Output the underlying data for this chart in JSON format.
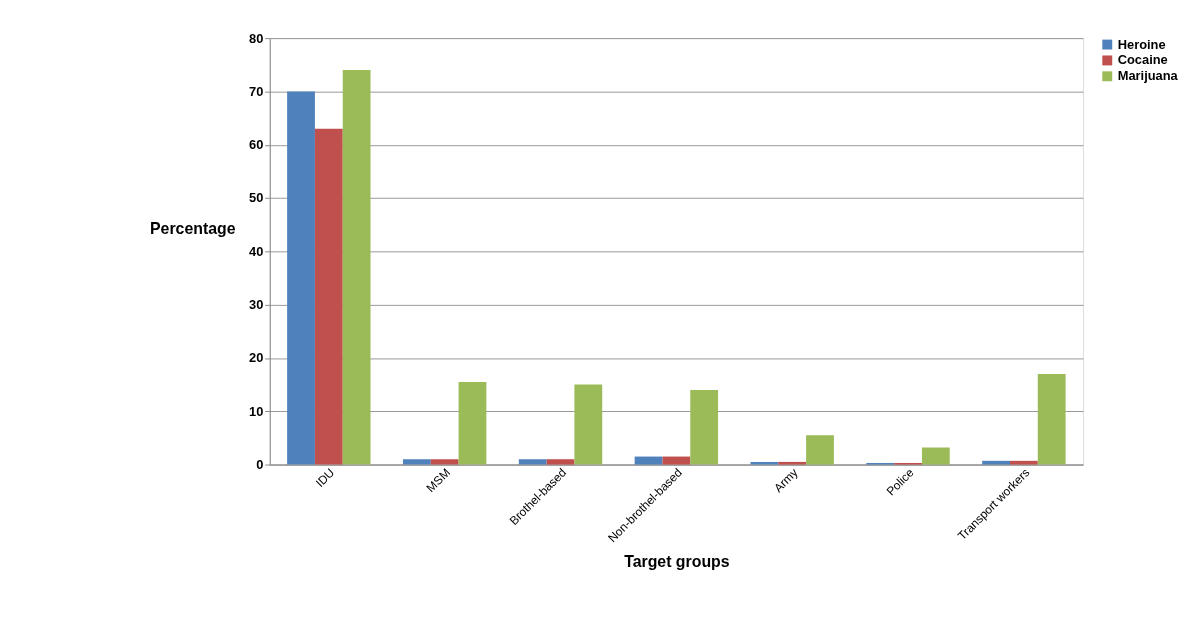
{
  "chart_data": {
    "type": "bar",
    "xlabel": "Target groups",
    "ylabel": "Percentage",
    "categories": [
      "IDU",
      "MSM",
      "Brothel-based",
      "Non-brothel-based",
      "Army",
      "Police",
      "Transport workers"
    ],
    "series": [
      {
        "name": "Heroine",
        "color": "#4f81bd",
        "values": [
          70,
          1,
          1,
          1.5,
          0.5,
          0.3,
          0.7
        ]
      },
      {
        "name": "Cocaine",
        "color": "#c0504d",
        "values": [
          63,
          1,
          1,
          1.5,
          0.5,
          0.3,
          0.7
        ]
      },
      {
        "name": "Marijuana",
        "color": "#9bbb59",
        "values": [
          74,
          15.5,
          15,
          14,
          5.5,
          3.2,
          17
        ]
      }
    ],
    "ylim": [
      0,
      80
    ],
    "yticks": [
      0,
      10,
      20,
      30,
      40,
      50,
      60,
      70,
      80
    ],
    "grid": "y",
    "legend": "right"
  }
}
